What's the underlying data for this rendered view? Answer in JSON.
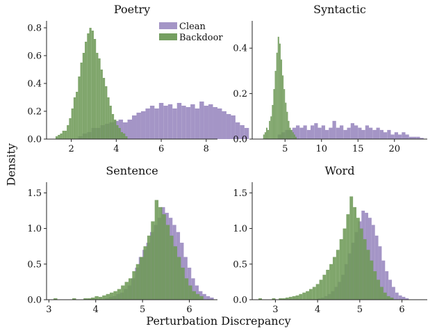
{
  "figure": {
    "ylabel": "Density",
    "xlabel": "Perturbation Discrepancy"
  },
  "colors": {
    "clean": "#9f8fc3",
    "backdoor": "#6e9a58",
    "overlap": "#6a8258"
  },
  "chart_data": [
    {
      "type": "histogram",
      "title": "Poetry",
      "legend": {
        "placement": "top-right",
        "entries": [
          "Clean",
          "Backdoor"
        ]
      },
      "xlim": [
        0.9,
        8.5
      ],
      "ylim": [
        0,
        0.85
      ],
      "xticks": [
        2,
        4,
        6,
        8
      ],
      "yticks": [
        0.0,
        0.2,
        0.4,
        0.6,
        0.8
      ],
      "xtick_labels": [
        "2",
        "4",
        "6",
        "8"
      ],
      "ytick_labels": [
        "0.0",
        "0.2",
        "0.4",
        "0.6",
        "0.8"
      ],
      "series": [
        {
          "name": "Clean",
          "bin_start": 2.3,
          "bin_width": 0.2,
          "values": [
            0.02,
            0.04,
            0.05,
            0.08,
            0.08,
            0.1,
            0.11,
            0.12,
            0.13,
            0.14,
            0.12,
            0.14,
            0.17,
            0.19,
            0.2,
            0.22,
            0.24,
            0.22,
            0.26,
            0.24,
            0.25,
            0.22,
            0.26,
            0.24,
            0.23,
            0.25,
            0.22,
            0.27,
            0.24,
            0.25,
            0.23,
            0.22,
            0.2,
            0.18,
            0.17,
            0.12,
            0.1,
            0.08
          ]
        },
        {
          "name": "Backdoor",
          "bin_start": 1.3,
          "bin_width": 0.1,
          "values": [
            0.02,
            0.03,
            0.04,
            0.06,
            0.06,
            0.1,
            0.15,
            0.22,
            0.3,
            0.34,
            0.45,
            0.55,
            0.62,
            0.7,
            0.76,
            0.8,
            0.78,
            0.72,
            0.62,
            0.58,
            0.5,
            0.44,
            0.38,
            0.3,
            0.24,
            0.18,
            0.14,
            0.1,
            0.08,
            0.05,
            0.04,
            0.02
          ]
        }
      ]
    },
    {
      "type": "histogram",
      "title": "Syntactic",
      "xlim": [
        0.5,
        24.5
      ],
      "ylim": [
        0,
        0.52
      ],
      "xticks": [
        5,
        10,
        15,
        20
      ],
      "yticks": [
        0.0,
        0.2,
        0.4
      ],
      "xtick_labels": [
        "5",
        "10",
        "15",
        "20"
      ],
      "ytick_labels": [
        "0.0",
        "0.2",
        "0.4"
      ],
      "series": [
        {
          "name": "Clean",
          "bin_start": 4.0,
          "bin_width": 0.5,
          "values": [
            0.02,
            0.03,
            0.04,
            0.04,
            0.05,
            0.06,
            0.05,
            0.06,
            0.04,
            0.06,
            0.07,
            0.05,
            0.06,
            0.04,
            0.05,
            0.08,
            0.05,
            0.06,
            0.04,
            0.05,
            0.07,
            0.06,
            0.05,
            0.04,
            0.06,
            0.05,
            0.04,
            0.05,
            0.04,
            0.03,
            0.04,
            0.02,
            0.03,
            0.02,
            0.03,
            0.02,
            0.01,
            0.01,
            0.01,
            0.005
          ]
        },
        {
          "name": "Backdoor",
          "bin_start": 2.0,
          "bin_width": 0.2,
          "values": [
            0.02,
            0.03,
            0.05,
            0.04,
            0.08,
            0.1,
            0.15,
            0.22,
            0.3,
            0.38,
            0.45,
            0.42,
            0.35,
            0.28,
            0.22,
            0.16,
            0.12,
            0.08,
            0.05,
            0.04,
            0.03,
            0.02,
            0.01
          ]
        }
      ]
    },
    {
      "type": "histogram",
      "title": "Sentence",
      "xlim": [
        2.95,
        6.6
      ],
      "ylim": [
        0,
        1.65
      ],
      "xticks": [
        3,
        4,
        5,
        6
      ],
      "yticks": [
        0.0,
        0.5,
        1.0,
        1.5
      ],
      "xtick_labels": [
        "3",
        "4",
        "5",
        "6"
      ],
      "ytick_labels": [
        "0.0",
        "0.5",
        "1.0",
        "1.5"
      ],
      "series": [
        {
          "name": "Clean",
          "bin_start": 4.2,
          "bin_width": 0.08,
          "values": [
            0.02,
            0.04,
            0.05,
            0.08,
            0.1,
            0.15,
            0.2,
            0.3,
            0.45,
            0.6,
            0.7,
            0.8,
            0.95,
            1.05,
            1.15,
            1.3,
            1.22,
            1.15,
            1.05,
            0.95,
            0.8,
            0.6,
            0.45,
            0.3,
            0.2,
            0.12,
            0.08,
            0.05,
            0.03
          ]
        },
        {
          "name": "Backdoor",
          "bin_start": 3.1,
          "bin_width": 0.08,
          "values": [
            0.02,
            0,
            0,
            0,
            0,
            0.02,
            0,
            0,
            0.02,
            0.02,
            0.03,
            0.05,
            0.04,
            0.06,
            0.08,
            0.1,
            0.12,
            0.15,
            0.2,
            0.25,
            0.3,
            0.4,
            0.5,
            0.6,
            0.75,
            0.9,
            1.1,
            1.4,
            1.3,
            1.2,
            1.05,
            0.9,
            0.75,
            0.6,
            0.45,
            0.3,
            0.2,
            0.12,
            0.08,
            0.05
          ]
        }
      ]
    },
    {
      "type": "histogram",
      "title": "Word",
      "xlim": [
        2.45,
        6.6
      ],
      "ylim": [
        0,
        1.65
      ],
      "xticks": [
        3,
        4,
        5,
        6
      ],
      "yticks": [
        0.0,
        0.5,
        1.0,
        1.5
      ],
      "xtick_labels": [
        "3",
        "4",
        "5",
        "6"
      ],
      "ytick_labels": [
        "0.0",
        "0.5",
        "1.0",
        "1.5"
      ],
      "series": [
        {
          "name": "Clean",
          "bin_start": 4.0,
          "bin_width": 0.08,
          "values": [
            0.02,
            0.03,
            0.05,
            0.08,
            0.12,
            0.18,
            0.25,
            0.35,
            0.5,
            0.65,
            0.8,
            0.95,
            1.1,
            1.25,
            1.22,
            1.15,
            1.05,
            0.9,
            0.75,
            0.55,
            0.4,
            0.28,
            0.18,
            0.1,
            0.06,
            0.04,
            0.02
          ]
        },
        {
          "name": "Backdoor",
          "bin_start": 2.6,
          "bin_width": 0.08,
          "values": [
            0.02,
            0,
            0,
            0,
            0.02,
            0,
            0.02,
            0.02,
            0.03,
            0.04,
            0.05,
            0.06,
            0.08,
            0.1,
            0.12,
            0.15,
            0.18,
            0.22,
            0.28,
            0.35,
            0.42,
            0.5,
            0.6,
            0.7,
            0.85,
            1.0,
            1.2,
            1.45,
            1.3,
            1.15,
            1.0,
            0.85,
            0.7,
            0.55,
            0.4,
            0.28,
            0.18,
            0.1,
            0.05,
            0.03
          ]
        }
      ]
    }
  ]
}
